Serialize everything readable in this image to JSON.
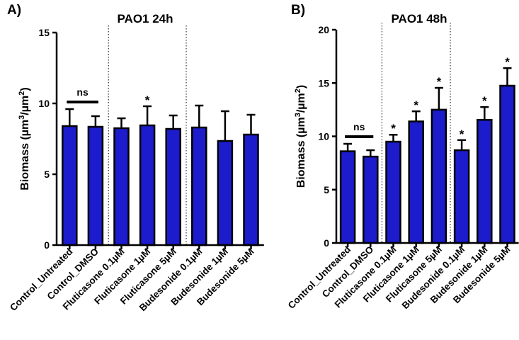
{
  "chart_data": [
    {
      "type": "bar",
      "panel_label": "A)",
      "title": "PAO1 24h",
      "ylabel_base": "Biomass (µm",
      "ylabel_mid": "/µm",
      "ylabel_end": ")",
      "ylabel_sup": "3",
      "ylabel_sup2": "2",
      "ylim": [
        0,
        15
      ],
      "yticks": [
        0,
        5,
        10,
        15
      ],
      "categories": [
        "Control_Untreated",
        "Control_DMSO",
        "Fluticasone 0.1µM",
        "Fluticasone 1µM",
        "Fluticasone 5µM",
        "Budesonide 0.1µM",
        "Budesonide 1µM",
        "Budesonide 5µM"
      ],
      "values": [
        8.4,
        8.35,
        8.25,
        8.45,
        8.2,
        8.3,
        7.35,
        7.8
      ],
      "errors": [
        1.2,
        0.75,
        0.7,
        1.35,
        0.95,
        1.55,
        2.1,
        1.4
      ],
      "significance": [
        "",
        "",
        "",
        "*",
        "",
        "",
        "",
        ""
      ],
      "ns_label": "ns",
      "ns_between": [
        0,
        1
      ]
    },
    {
      "type": "bar",
      "panel_label": "B)",
      "title": "PAO1 48h",
      "ylabel_base": "Biomass (µm",
      "ylabel_mid": "/µm",
      "ylabel_end": ")",
      "ylabel_sup": "3",
      "ylabel_sup2": "2",
      "ylim": [
        0,
        20
      ],
      "yticks": [
        0,
        5,
        10,
        15,
        20
      ],
      "categories": [
        "Control_Untreated",
        "Control_DMSO",
        "Fluticasone 0.1µM",
        "Fluticasone 1µM",
        "Fluticasone 5µM",
        "Budesonide 0.1µM",
        "Budesonide 1µM",
        "Budesonide 5µM"
      ],
      "values": [
        8.6,
        8.1,
        9.5,
        11.4,
        12.5,
        8.7,
        11.55,
        14.75
      ],
      "errors": [
        0.7,
        0.6,
        0.65,
        0.95,
        2.05,
        0.95,
        1.2,
        1.65
      ],
      "significance": [
        "",
        "",
        "*",
        "*",
        "*",
        "*",
        "*",
        "*"
      ],
      "ns_label": "ns",
      "ns_between": [
        0,
        1
      ]
    }
  ]
}
